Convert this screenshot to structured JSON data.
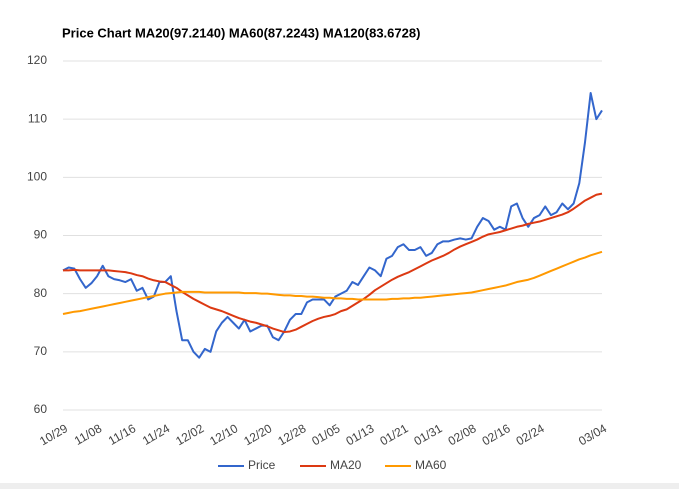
{
  "chart_data": {
    "type": "line",
    "title": "Price Chart MA20(97.2140) MA60(87.2243) MA120(83.6728)",
    "categories": [
      "10/29",
      null,
      null,
      null,
      null,
      null,
      "11/08",
      null,
      null,
      null,
      null,
      null,
      "11/16",
      null,
      null,
      null,
      null,
      null,
      "11/24",
      null,
      null,
      null,
      null,
      null,
      "12/02",
      null,
      null,
      null,
      null,
      null,
      "12/10",
      null,
      null,
      null,
      null,
      null,
      "12/20",
      null,
      null,
      null,
      null,
      null,
      "12/28",
      null,
      null,
      null,
      null,
      null,
      "01/05",
      null,
      null,
      null,
      null,
      null,
      "01/13",
      null,
      null,
      null,
      null,
      null,
      "01/21",
      null,
      null,
      null,
      null,
      null,
      "01/31",
      null,
      null,
      null,
      null,
      null,
      "02/08",
      null,
      null,
      null,
      null,
      null,
      "02/16",
      null,
      null,
      null,
      null,
      null,
      "02/24",
      null,
      null,
      null,
      null,
      null,
      null,
      null,
      null,
      null,
      null,
      "03/04"
    ],
    "series": [
      {
        "name": "Price",
        "color": "#3366cc",
        "values": [
          84,
          84.5,
          84.3,
          82.5,
          81,
          81.8,
          83,
          84.8,
          83,
          82.5,
          82.3,
          82,
          82.5,
          80.5,
          81,
          79,
          79.5,
          82,
          82,
          83,
          77,
          72,
          72,
          70,
          69,
          70.5,
          70,
          73.5,
          75,
          76,
          75,
          74,
          75.5,
          73.5,
          74,
          74.5,
          74.5,
          72.5,
          72,
          73.5,
          75.5,
          76.5,
          76.5,
          78.5,
          79,
          79,
          79,
          78,
          79.5,
          80,
          80.5,
          82,
          81.5,
          83,
          84.5,
          84,
          83,
          86,
          86.5,
          88,
          88.5,
          87.5,
          87.5,
          88,
          86.5,
          87,
          88.5,
          89,
          89,
          89.3,
          89.5,
          89.3,
          89.5,
          91.5,
          93,
          92.5,
          91,
          91.5,
          91,
          95,
          95.5,
          93,
          91.5,
          93,
          93.5,
          95,
          93.5,
          94,
          95.5,
          94.5,
          95.5,
          99,
          106,
          114.5,
          110,
          111.5
        ]
      },
      {
        "name": "MA20",
        "color": "#dc3912",
        "values": [
          84,
          84,
          84.1,
          84,
          84,
          84,
          84,
          84,
          84,
          83.9,
          83.8,
          83.7,
          83.5,
          83.2,
          83,
          82.6,
          82.3,
          82.1,
          82,
          81.5,
          81,
          80.3,
          79.7,
          79.1,
          78.6,
          78.1,
          77.6,
          77.3,
          77,
          76.6,
          76.2,
          75.8,
          75.5,
          75.2,
          75,
          74.7,
          74.4,
          74,
          73.7,
          73.4,
          73.5,
          73.8,
          74.3,
          74.8,
          75.3,
          75.7,
          76,
          76.2,
          76.5,
          77,
          77.3,
          77.9,
          78.5,
          79.1,
          79.8,
          80.6,
          81.2,
          81.8,
          82.4,
          82.9,
          83.3,
          83.7,
          84.2,
          84.7,
          85.2,
          85.7,
          86.1,
          86.5,
          87,
          87.6,
          88.1,
          88.5,
          88.9,
          89.3,
          89.8,
          90.2,
          90.4,
          90.6,
          90.9,
          91.2,
          91.5,
          91.7,
          92,
          92.2,
          92.4,
          92.7,
          93,
          93.3,
          93.6,
          94,
          94.6,
          95.3,
          96,
          96.5,
          97,
          97.2
        ]
      },
      {
        "name": "MA60",
        "color": "#ff9900",
        "values": [
          76.5,
          76.7,
          76.9,
          77,
          77.2,
          77.4,
          77.6,
          77.8,
          78,
          78.2,
          78.4,
          78.6,
          78.8,
          79,
          79.2,
          79.4,
          79.6,
          79.8,
          80,
          80.1,
          80.2,
          80.3,
          80.3,
          80.3,
          80.3,
          80.2,
          80.2,
          80.2,
          80.2,
          80.2,
          80.2,
          80.2,
          80.1,
          80.1,
          80.1,
          80,
          80,
          79.9,
          79.8,
          79.7,
          79.7,
          79.6,
          79.6,
          79.5,
          79.5,
          79.4,
          79.3,
          79.3,
          79.2,
          79.2,
          79.1,
          79.1,
          79,
          79,
          79,
          79,
          79,
          79,
          79.1,
          79.1,
          79.2,
          79.2,
          79.3,
          79.3,
          79.4,
          79.5,
          79.6,
          79.7,
          79.8,
          79.9,
          80,
          80.1,
          80.2,
          80.4,
          80.6,
          80.8,
          81,
          81.2,
          81.4,
          81.7,
          82,
          82.2,
          82.4,
          82.7,
          83.1,
          83.5,
          83.9,
          84.3,
          84.7,
          85.1,
          85.5,
          85.9,
          86.2,
          86.6,
          86.9,
          87.2
        ]
      }
    ],
    "ylim": [
      60,
      120
    ],
    "yticks": [
      60,
      70,
      80,
      90,
      100,
      110,
      120
    ],
    "grid": true,
    "legend": "bottom"
  }
}
